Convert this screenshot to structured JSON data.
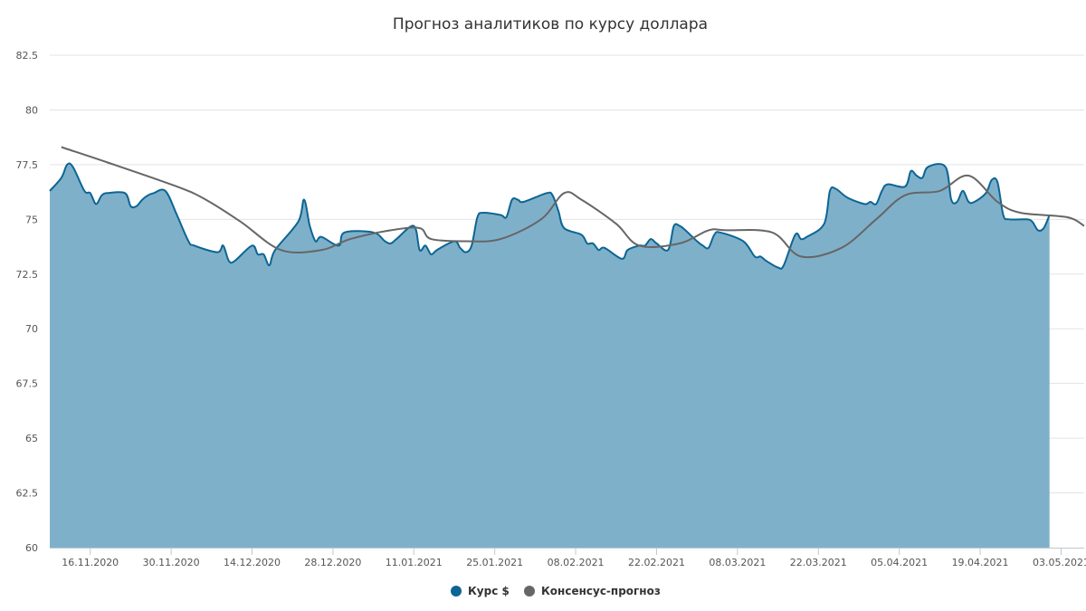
{
  "chart_data": {
    "type": "area",
    "title": "Прогноз аналитиков по курсу доллара",
    "xlabel": "",
    "ylabel": "",
    "ylim": [
      60,
      82.5
    ],
    "y_ticks": [
      "60",
      "62.5",
      "65",
      "67.5",
      "70",
      "72.5",
      "75",
      "77.5",
      "80",
      "82.5"
    ],
    "x_tick_labels": [
      "16.11.2020",
      "30.11.2020",
      "14.12.2020",
      "28.12.2020",
      "11.01.2021",
      "25.01.2021",
      "08.02.2021",
      "22.02.2021",
      "08.03.2021",
      "22.03.2021",
      "05.04.2021",
      "19.04.2021",
      "03.05.2021"
    ],
    "x_range": [
      "09.11.2020",
      "07.05.2021"
    ],
    "grid": true,
    "legend_position": "bottom-center",
    "colors": {
      "rate": "#0c6594",
      "rate_fill": "#7fb0ca",
      "forecast": "#666666"
    },
    "series": [
      {
        "name": "Курс $",
        "style": "area",
        "points": [
          [
            "09.11.2020",
            76.3
          ],
          [
            "11.11.2020",
            76.9
          ],
          [
            "12.11.2020",
            77.5
          ],
          [
            "13.11.2020",
            77.4
          ],
          [
            "15.11.2020",
            76.3
          ],
          [
            "16.11.2020",
            76.2
          ],
          [
            "17.11.2020",
            75.7
          ],
          [
            "18.11.2020",
            76.1
          ],
          [
            "19.11.2020",
            76.2
          ],
          [
            "22.11.2020",
            76.2
          ],
          [
            "23.11.2020",
            75.6
          ],
          [
            "24.11.2020",
            75.6
          ],
          [
            "25.11.2020",
            75.9
          ],
          [
            "26.11.2020",
            76.1
          ],
          [
            "27.11.2020",
            76.2
          ],
          [
            "29.11.2020",
            76.3
          ],
          [
            "01.12.2020",
            75.2
          ],
          [
            "03.12.2020",
            74.0
          ],
          [
            "04.12.2020",
            73.8
          ],
          [
            "08.12.2020",
            73.5
          ],
          [
            "09.12.2020",
            73.8
          ],
          [
            "10.12.2020",
            73.1
          ],
          [
            "11.12.2020",
            73.1
          ],
          [
            "14.12.2020",
            73.8
          ],
          [
            "15.12.2020",
            73.4
          ],
          [
            "16.12.2020",
            73.4
          ],
          [
            "17.12.2020",
            72.9
          ],
          [
            "18.12.2020",
            73.6
          ],
          [
            "22.12.2020",
            74.9
          ],
          [
            "23.12.2020",
            75.9
          ],
          [
            "24.12.2020",
            74.7
          ],
          [
            "25.12.2020",
            74.0
          ],
          [
            "26.12.2020",
            74.2
          ],
          [
            "29.12.2020",
            73.8
          ],
          [
            "30.12.2020",
            74.4
          ],
          [
            "04.01.2021",
            74.4
          ],
          [
            "06.01.2021",
            74.0
          ],
          [
            "07.01.2021",
            73.9
          ],
          [
            "08.01.2021",
            74.1
          ],
          [
            "11.01.2021",
            74.7
          ],
          [
            "12.01.2021",
            73.6
          ],
          [
            "13.01.2021",
            73.8
          ],
          [
            "14.01.2021",
            73.4
          ],
          [
            "15.01.2021",
            73.6
          ],
          [
            "18.01.2021",
            74.0
          ],
          [
            "19.01.2021",
            73.7
          ],
          [
            "20.01.2021",
            73.5
          ],
          [
            "21.01.2021",
            73.8
          ],
          [
            "22.01.2021",
            75.1
          ],
          [
            "23.01.2021",
            75.3
          ],
          [
            "26.01.2021",
            75.2
          ],
          [
            "27.01.2021",
            75.1
          ],
          [
            "28.01.2021",
            75.9
          ],
          [
            "29.01.2021",
            75.9
          ],
          [
            "30.01.2021",
            75.8
          ],
          [
            "03.02.2021",
            76.2
          ],
          [
            "04.02.2021",
            76.1
          ],
          [
            "05.02.2021",
            75.4
          ],
          [
            "06.02.2021",
            74.6
          ],
          [
            "09.02.2021",
            74.3
          ],
          [
            "10.02.2021",
            73.9
          ],
          [
            "11.02.2021",
            73.9
          ],
          [
            "12.02.2021",
            73.6
          ],
          [
            "13.02.2021",
            73.7
          ],
          [
            "16.02.2021",
            73.2
          ],
          [
            "17.02.2021",
            73.6
          ],
          [
            "19.02.2021",
            73.8
          ],
          [
            "20.02.2021",
            73.8
          ],
          [
            "21.02.2021",
            74.1
          ],
          [
            "22.02.2021",
            73.9
          ],
          [
            "24.02.2021",
            73.6
          ],
          [
            "25.02.2021",
            74.7
          ],
          [
            "26.02.2021",
            74.7
          ],
          [
            "27.02.2021",
            74.5
          ],
          [
            "01.03.2021",
            74.0
          ],
          [
            "02.03.2021",
            73.8
          ],
          [
            "03.03.2021",
            73.7
          ],
          [
            "04.03.2021",
            74.3
          ],
          [
            "05.03.2021",
            74.4
          ],
          [
            "09.03.2021",
            74.0
          ],
          [
            "11.03.2021",
            73.3
          ],
          [
            "12.03.2021",
            73.3
          ],
          [
            "13.03.2021",
            73.1
          ],
          [
            "15.03.2021",
            72.8
          ],
          [
            "16.03.2021",
            72.9
          ],
          [
            "18.03.2021",
            74.3
          ],
          [
            "19.03.2021",
            74.1
          ],
          [
            "20.03.2021",
            74.2
          ],
          [
            "23.03.2021",
            74.8
          ],
          [
            "24.03.2021",
            76.3
          ],
          [
            "25.03.2021",
            76.4
          ],
          [
            "27.03.2021",
            76.0
          ],
          [
            "30.03.2021",
            75.7
          ],
          [
            "31.03.2021",
            75.8
          ],
          [
            "01.04.2021",
            75.7
          ],
          [
            "02.04.2021",
            76.3
          ],
          [
            "03.04.2021",
            76.6
          ],
          [
            "06.04.2021",
            76.5
          ],
          [
            "07.04.2021",
            77.2
          ],
          [
            "08.04.2021",
            77.0
          ],
          [
            "09.04.2021",
            76.9
          ],
          [
            "10.04.2021",
            77.4
          ],
          [
            "13.04.2021",
            77.4
          ],
          [
            "14.04.2021",
            75.9
          ],
          [
            "15.04.2021",
            75.8
          ],
          [
            "16.04.2021",
            76.3
          ],
          [
            "17.04.2021",
            75.8
          ],
          [
            "18.04.2021",
            75.8
          ],
          [
            "20.04.2021",
            76.2
          ],
          [
            "21.04.2021",
            76.8
          ],
          [
            "22.04.2021",
            76.7
          ],
          [
            "23.04.2021",
            75.2
          ],
          [
            "24.04.2021",
            75.0
          ],
          [
            "27.04.2021",
            75.0
          ],
          [
            "28.04.2021",
            74.9
          ],
          [
            "29.04.2021",
            74.5
          ],
          [
            "30.04.2021",
            74.6
          ],
          [
            "01.05.2021",
            75.2
          ]
        ]
      },
      {
        "name": "Консенсус-прогноз",
        "style": "line",
        "points": [
          [
            "11.11.2020",
            78.3
          ],
          [
            "19.11.2020",
            77.6
          ],
          [
            "01.12.2020",
            76.5
          ],
          [
            "06.12.2020",
            75.9
          ],
          [
            "12.12.2020",
            74.9
          ],
          [
            "19.12.2020",
            73.6
          ],
          [
            "26.12.2020",
            73.6
          ],
          [
            "31.12.2020",
            74.1
          ],
          [
            "07.01.2021",
            74.5
          ],
          [
            "12.01.2021",
            74.6
          ],
          [
            "14.01.2021",
            74.1
          ],
          [
            "20.01.2021",
            74.0
          ],
          [
            "26.01.2021",
            74.1
          ],
          [
            "02.02.2021",
            75.0
          ],
          [
            "06.02.2021",
            76.2
          ],
          [
            "09.02.2021",
            75.9
          ],
          [
            "15.02.2021",
            74.8
          ],
          [
            "19.02.2021",
            73.8
          ],
          [
            "26.02.2021",
            73.9
          ],
          [
            "03.03.2021",
            74.5
          ],
          [
            "06.03.2021",
            74.5
          ],
          [
            "14.03.2021",
            74.4
          ],
          [
            "19.03.2021",
            73.3
          ],
          [
            "26.03.2021",
            73.7
          ],
          [
            "01.04.2021",
            75.0
          ],
          [
            "06.04.2021",
            76.1
          ],
          [
            "12.04.2021",
            76.3
          ],
          [
            "17.04.2021",
            77.0
          ],
          [
            "22.04.2021",
            75.8
          ],
          [
            "26.04.2021",
            75.3
          ],
          [
            "04.05.2021",
            75.1
          ],
          [
            "07.05.2021",
            74.7
          ]
        ]
      }
    ]
  }
}
